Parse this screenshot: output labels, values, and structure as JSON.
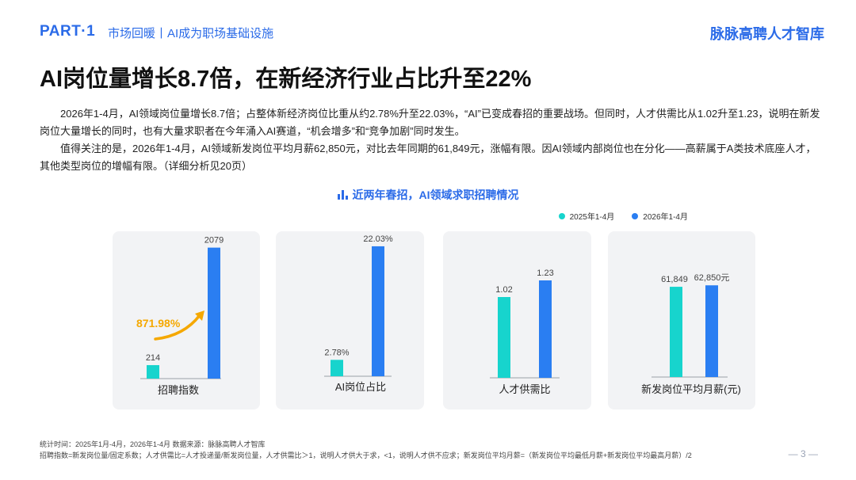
{
  "header": {
    "part": "PART·1",
    "subtitle": "市场回暖丨AI成为职场基础设施",
    "brand": "脉脉高聘人才智库"
  },
  "title": "AI岗位量增长8.7倍，在新经济行业占比升至22%",
  "paragraphs": [
    "2026年1-4月，AI领域岗位量增长8.7倍；占整体新经济岗位比重从约2.78%升至22.03%，“AI”已变成春招的重要战场。但同时，人才供需比从1.02升至1.23，说明在新发岗位大量增长的同时，也有大量求职者在今年涌入AI赛道，“机会增多”和“竞争加剧”同时发生。",
    "值得关注的是，2026年1-4月，AI领域新发岗位平均月薪62,850元，对比去年同期的61,849元，涨幅有限。因AI领域内部岗位也在分化——高薪属于A类技术底座人才，其他类型岗位的增幅有限。（详细分析见20页）"
  ],
  "chart_title": "近两年春招，AI领域求职招聘情况",
  "colors": {
    "accent": "#2b6be8",
    "series_2025": "#17d4cd",
    "series_2026": "#2a7ef2",
    "arrow": "#f5a800"
  },
  "chart_data": {
    "type": "bar",
    "legend": [
      "2025年1-4月",
      "2026年1-4月"
    ],
    "legend_position": "top-right",
    "charts": [
      {
        "category": "招聘指数",
        "values": [
          214,
          2079
        ],
        "labels": [
          "214",
          "2079"
        ],
        "ylim": [
          0,
          2200
        ],
        "annotation": "871.98%"
      },
      {
        "category": "AI岗位占比",
        "values": [
          2.78,
          22.03
        ],
        "labels": [
          "2.78%",
          "22.03%"
        ],
        "ylim": [
          0,
          23.5
        ]
      },
      {
        "category": "人才供需比",
        "values": [
          1.02,
          1.23
        ],
        "labels": [
          "1.02",
          "1.23"
        ],
        "ylim": [
          0,
          1.75
        ]
      },
      {
        "category": "新发岗位平均月薪(元)",
        "values": [
          61849,
          62850
        ],
        "labels": [
          "61,849",
          "62,850元"
        ],
        "ylim": [
          0,
          95000
        ]
      }
    ]
  },
  "footer": {
    "line1": "统计时间：2025年1月-4月，2026年1-4月    数据来源：脉脉高聘人才智库",
    "line2": "招聘指数=新发岗位量/固定系数；人才供需比=人才投递量/新发岗位量，人才供需比＞1，说明人才供大于求，<1，说明人才供不应求；新发岗位平均月薪=（新发岗位平均最低月薪+新发岗位平均最高月薪）/2",
    "page": "— 3 —"
  }
}
